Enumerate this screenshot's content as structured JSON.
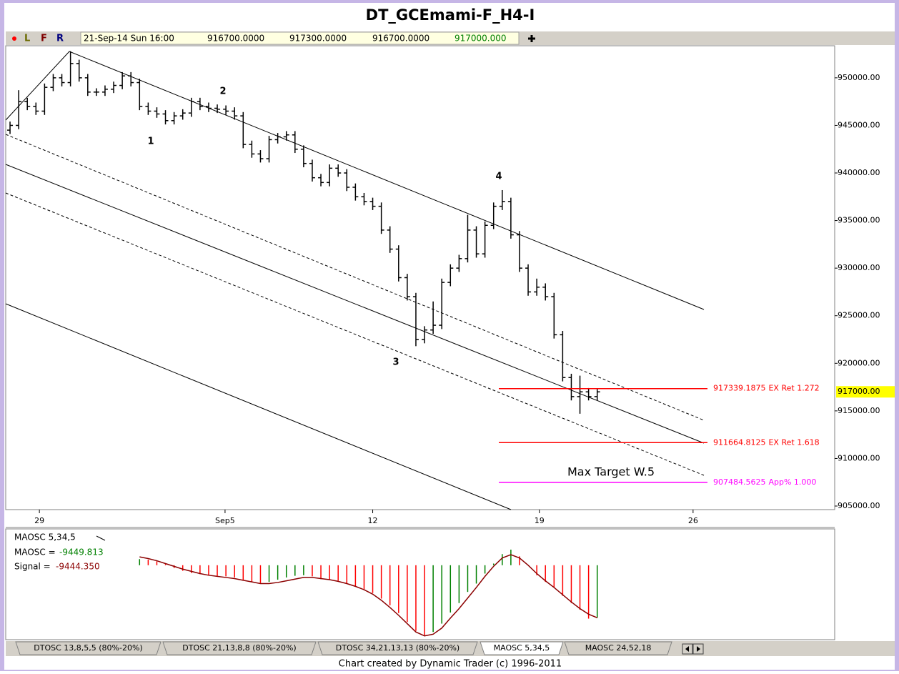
{
  "header": {
    "title": "DT_GCEmami-F_H4-I",
    "flags": [
      "L",
      "F",
      "R"
    ],
    "bar_info": [
      "21-Sep-14 Sun 16:00",
      "916700.0000",
      "917300.0000",
      "916700.0000",
      "917000.000"
    ]
  },
  "chart_data": [
    {
      "type": "ohlc",
      "color": "#000000",
      "xlim": [
        -0.5,
        95.5
      ],
      "xticks": [
        {
          "value": 3.4,
          "label": "29"
        },
        {
          "value": 24.9,
          "label": "Sep5"
        },
        {
          "value": 42.0,
          "label": "12"
        },
        {
          "value": 61.3,
          "label": "19"
        },
        {
          "value": 79.1,
          "label": "26"
        }
      ],
      "ylim": [
        904625,
        953370
      ],
      "yticks": [
        {
          "value": 905000,
          "label": "905000.00"
        },
        {
          "value": 910000,
          "label": "910000.00"
        },
        {
          "value": 915000,
          "label": "915000.00"
        },
        {
          "value": 920000,
          "label": "920000.00"
        },
        {
          "value": 925000,
          "label": "925000.00"
        },
        {
          "value": 930000,
          "label": "930000.00"
        },
        {
          "value": 935000,
          "label": "935000.00"
        },
        {
          "value": 940000,
          "label": "940000.00"
        },
        {
          "value": 945000,
          "label": "945000.00"
        },
        {
          "value": 950000,
          "label": "950000.00"
        }
      ],
      "open": [
        944500,
        945000,
        947500,
        947000,
        946500,
        949000,
        950000,
        949500,
        951500,
        950000,
        948500,
        948500,
        948800,
        949200,
        950200,
        949500,
        947000,
        946500,
        946200,
        945500,
        946000,
        946300,
        947500,
        947000,
        946800,
        946700,
        946500,
        946000,
        943000,
        942000,
        941500,
        943500,
        943800,
        944000,
        942500,
        941000,
        939500,
        939000,
        940500,
        940000,
        938500,
        937500,
        937000,
        936500,
        934000,
        932000,
        929000,
        927000,
        922500,
        923500,
        924000,
        928500,
        930000,
        931000,
        934000,
        931500,
        934500,
        936500,
        937000,
        933500,
        930000,
        927500,
        928000,
        927000,
        923000,
        918500,
        916500,
        917000,
        916500
      ],
      "high": [
        945400,
        948700,
        947900,
        947400,
        949400,
        950400,
        950400,
        952800,
        951900,
        950400,
        948900,
        949200,
        949600,
        950600,
        950600,
        949900,
        947400,
        946900,
        946600,
        946400,
        946700,
        947900,
        947900,
        947400,
        947200,
        947100,
        946900,
        946400,
        943400,
        942400,
        943900,
        944200,
        944400,
        944400,
        942900,
        941400,
        939900,
        940900,
        940900,
        940400,
        938900,
        937900,
        937400,
        936900,
        934400,
        932400,
        929400,
        927400,
        923900,
        926500,
        928900,
        930400,
        931400,
        935600,
        934400,
        934900,
        936900,
        938200,
        937400,
        933900,
        930400,
        928900,
        928400,
        927400,
        923400,
        918900,
        918700,
        917400,
        917300
      ],
      "low": [
        944100,
        944600,
        946600,
        946100,
        946100,
        948600,
        949100,
        949100,
        949600,
        948100,
        948100,
        948100,
        948400,
        948800,
        949100,
        946600,
        946100,
        945800,
        945100,
        945100,
        945600,
        945900,
        946600,
        946400,
        946300,
        946100,
        945600,
        942600,
        941600,
        941100,
        941100,
        943100,
        943400,
        942100,
        940600,
        939100,
        938600,
        938600,
        939600,
        938100,
        937100,
        936600,
        936100,
        933600,
        931600,
        928600,
        926600,
        921800,
        922100,
        923100,
        923600,
        928100,
        929600,
        930600,
        931100,
        931100,
        934100,
        936100,
        933100,
        929600,
        927100,
        927100,
        926600,
        922600,
        918100,
        916100,
        914700,
        916100,
        916100
      ],
      "close": [
        945000,
        947500,
        947000,
        946500,
        949000,
        950000,
        949500,
        951500,
        950000,
        948500,
        948500,
        948800,
        949200,
        950200,
        949500,
        947000,
        946500,
        946200,
        945500,
        946000,
        946300,
        947500,
        947000,
        946800,
        946700,
        946500,
        946000,
        943000,
        942000,
        941500,
        943500,
        943800,
        944000,
        942500,
        941000,
        939500,
        939000,
        940500,
        940000,
        938500,
        937500,
        937000,
        936500,
        934000,
        932000,
        929000,
        927000,
        922500,
        923500,
        924000,
        928500,
        930000,
        931000,
        934000,
        931500,
        934500,
        936500,
        937000,
        933500,
        930000,
        927500,
        928000,
        927000,
        923000,
        918500,
        916500,
        917000,
        916500,
        917000
      ],
      "last_price": {
        "value": 917000,
        "label": "917000.00"
      },
      "levels": [
        {
          "value": 917339.1875,
          "label": "EX Ret 1.272",
          "color": "#ff0000"
        },
        {
          "value": 911664.8125,
          "label": "EX Ret 1.618",
          "color": "#ff0000"
        },
        {
          "value": 907484.5625,
          "label": "App% 1.000",
          "color": "#ff00ff"
        }
      ],
      "wave_labels": [
        "1",
        "2",
        "3",
        "4"
      ],
      "annotation": "Max Target W.5"
    },
    {
      "type": "bar",
      "title": "MAOSC 5,34,5",
      "xlim": [
        -0.5,
        95.5
      ],
      "ylim": [
        -13000,
        5500
      ],
      "series": [
        {
          "name": "MAOSC =",
          "up_color": "#008000",
          "down_color": "#ff0000",
          "label_color": "#008000",
          "values": [
            null,
            null,
            null,
            null,
            null,
            null,
            null,
            null,
            null,
            null,
            null,
            null,
            null,
            null,
            null,
            1100,
            1000,
            700,
            200,
            -500,
            -1000,
            -1400,
            -1600,
            -1800,
            -1900,
            -2000,
            -2200,
            -2600,
            -3000,
            -3200,
            -3000,
            -2600,
            -2200,
            -1900,
            -1800,
            -2000,
            -2500,
            -2600,
            -2800,
            -3300,
            -3800,
            -4300,
            -5000,
            -6000,
            -7200,
            -8600,
            -10200,
            -11800,
            -12600,
            -12000,
            -10500,
            -8500,
            -6800,
            -4800,
            -3300,
            -1500,
            300,
            2000,
            2800,
            1600,
            0,
            -1800,
            -3000,
            -4000,
            -5500,
            -6800,
            -8000,
            -9600,
            -9449.813
          ]
        },
        {
          "name": "Signal =",
          "color": "#8b0000",
          "value_label": "-9444.350",
          "values": [
            null,
            null,
            null,
            null,
            null,
            null,
            null,
            null,
            null,
            null,
            null,
            null,
            null,
            null,
            null,
            1500,
            1200,
            800,
            300,
            -200,
            -700,
            -1100,
            -1500,
            -1800,
            -2000,
            -2200,
            -2400,
            -2700,
            -3000,
            -3300,
            -3300,
            -3100,
            -2800,
            -2500,
            -2200,
            -2200,
            -2400,
            -2600,
            -2900,
            -3300,
            -3800,
            -4400,
            -5200,
            -6300,
            -7600,
            -9000,
            -10500,
            -12000,
            -12700,
            -12400,
            -11300,
            -9500,
            -7800,
            -5900,
            -4000,
            -2000,
            -200,
            1300,
            1900,
            1300,
            0,
            -1500,
            -2800,
            -4000,
            -5300,
            -6600,
            -7800,
            -8800,
            -9444.35
          ]
        }
      ]
    }
  ],
  "tabs": [
    "DTOSC 13,8,5,5 (80%-20%)",
    "DTOSC 21,13,8,8 (80%-20%)",
    "DTOSC 34,21,13,13 (80%-20%)",
    "MAOSC 5,34,5",
    "MAOSC 24,52,18"
  ],
  "footer": "Chart created by Dynamic Trader  (c) 1996-2011"
}
